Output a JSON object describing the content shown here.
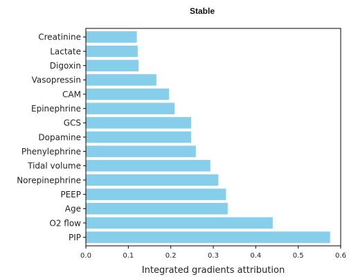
{
  "chart_data": {
    "type": "bar",
    "orientation": "horizontal",
    "title": "Stable",
    "xlabel": "Integrated gradients attribution",
    "ylabel": "",
    "categories": [
      "PIP",
      "O2 flow",
      "Age",
      "PEEP",
      "Norepinephrine",
      "Tidal volume",
      "Phenylephrine",
      "Dopamine",
      "GCS",
      "Epinephrine",
      "CAM",
      "Vasopressin",
      "Digoxin",
      "Lactate",
      "Creatinine"
    ],
    "values": [
      0.575,
      0.44,
      0.334,
      0.33,
      0.312,
      0.293,
      0.259,
      0.248,
      0.248,
      0.209,
      0.196,
      0.166,
      0.124,
      0.122,
      0.12
    ],
    "xlim": [
      0,
      0.6
    ],
    "xticks": [
      "0.0",
      "0.1",
      "0.2",
      "0.3",
      "0.4",
      "0.5",
      "0.6"
    ],
    "bar_color": "#87CEEB",
    "grid": false,
    "legend": "none"
  }
}
